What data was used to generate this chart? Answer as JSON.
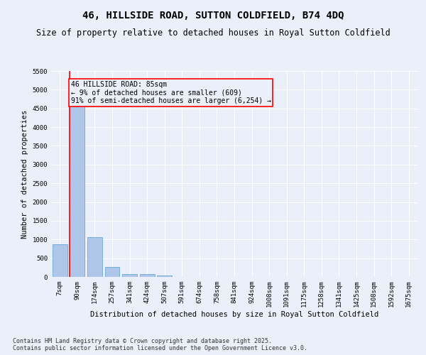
{
  "title": "46, HILLSIDE ROAD, SUTTON COLDFIELD, B74 4DQ",
  "subtitle": "Size of property relative to detached houses in Royal Sutton Coldfield",
  "xlabel": "Distribution of detached houses by size in Royal Sutton Coldfield",
  "ylabel": "Number of detached properties",
  "categories": [
    "7sqm",
    "90sqm",
    "174sqm",
    "257sqm",
    "341sqm",
    "424sqm",
    "507sqm",
    "591sqm",
    "674sqm",
    "758sqm",
    "841sqm",
    "924sqm",
    "1008sqm",
    "1091sqm",
    "1175sqm",
    "1258sqm",
    "1341sqm",
    "1425sqm",
    "1508sqm",
    "1592sqm",
    "1675sqm"
  ],
  "values": [
    880,
    4580,
    1070,
    275,
    75,
    70,
    45,
    0,
    0,
    0,
    0,
    0,
    0,
    0,
    0,
    0,
    0,
    0,
    0,
    0,
    0
  ],
  "bar_color": "#aec6e8",
  "bar_edge_color": "#5a9fd4",
  "annotation_text": "46 HILLSIDE ROAD: 85sqm\n← 9% of detached houses are smaller (609)\n91% of semi-detached houses are larger (6,254) →",
  "ylim": [
    0,
    5500
  ],
  "yticks": [
    0,
    500,
    1000,
    1500,
    2000,
    2500,
    3000,
    3500,
    4000,
    4500,
    5000,
    5500
  ],
  "background_color": "#eaeff9",
  "grid_color": "#ffffff",
  "footer": "Contains HM Land Registry data © Crown copyright and database right 2025.\nContains public sector information licensed under the Open Government Licence v3.0.",
  "title_fontsize": 10,
  "subtitle_fontsize": 8.5,
  "xlabel_fontsize": 7.5,
  "ylabel_fontsize": 7.5,
  "tick_fontsize": 6.5,
  "annotation_fontsize": 7,
  "footer_fontsize": 6
}
